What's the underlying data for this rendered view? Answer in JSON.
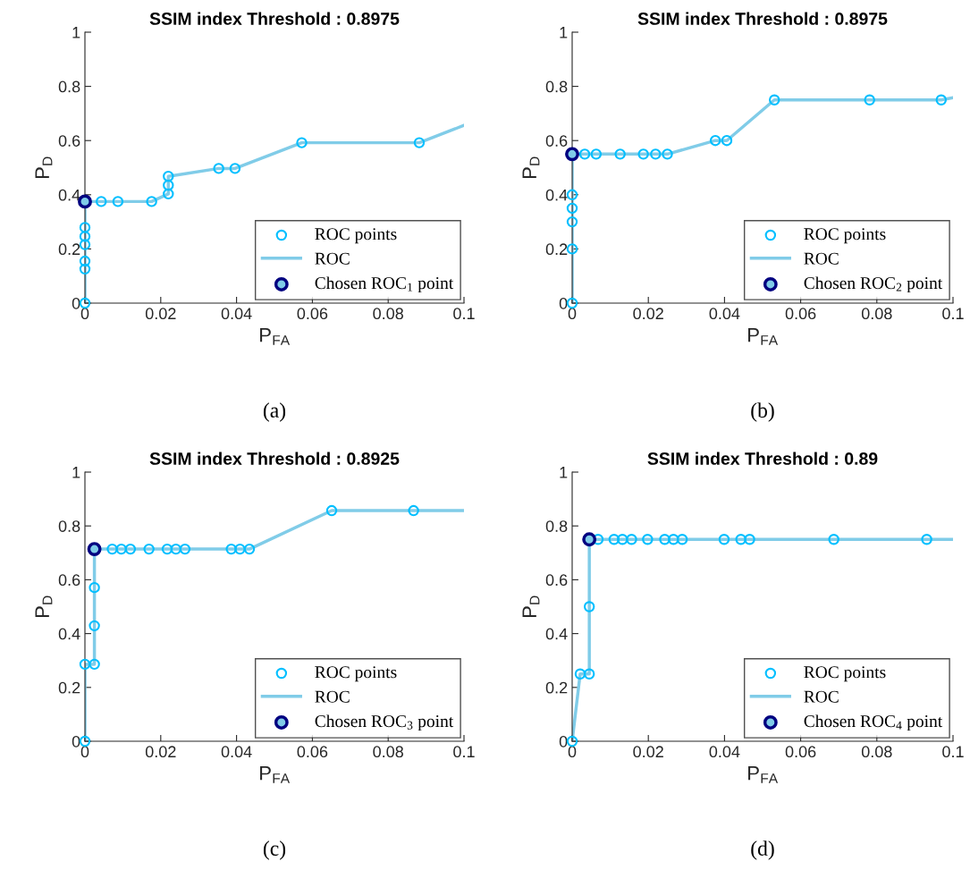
{
  "chart_data": [
    {
      "type": "scatter",
      "title": "SSIM index Threshold : 0.8975",
      "xlabel": "P$_{FA}$",
      "ylabel": "P$_{D}$",
      "annotations": [
        "(a)"
      ],
      "legend": "bottom right",
      "xlim": [
        0,
        0.1
      ],
      "ylim": [
        0,
        1
      ],
      "xticks": [
        0,
        0.02,
        0.04,
        0.06,
        0.08,
        0.1
      ],
      "yticks": [
        0,
        0.2,
        0.4,
        0.6,
        0.8,
        1
      ],
      "series": [
        {
          "name": "ROC points",
          "marker": "circle",
          "color": "#00bfff",
          "x": [
            0,
            0,
            0,
            0,
            0,
            0,
            0.0043,
            0.0087,
            0.0176,
            0.022,
            0.022,
            0.022,
            0.0353,
            0.0396,
            0.0572,
            0.0882
          ],
          "values": [
            0,
            0.126,
            0.155,
            0.216,
            0.246,
            0.279,
            0.375,
            0.375,
            0.375,
            0.403,
            0.435,
            0.468,
            0.497,
            0.497,
            0.592,
            0.592
          ]
        },
        {
          "name": "ROC",
          "type": "line",
          "line_style": "solid",
          "color": "#80cce8",
          "x": [
            0,
            0,
            0.0043,
            0.0087,
            0.0176,
            0.022,
            0.022,
            0.022,
            0.0353,
            0.0396,
            0.0572,
            0.0882,
            0.1
          ],
          "values": [
            0,
            0.375,
            0.375,
            0.375,
            0.375,
            0.403,
            0.435,
            0.468,
            0.497,
            0.497,
            0.592,
            0.592,
            0.656
          ]
        },
        {
          "name": "Chosen ROC$_{1}$ point",
          "marker": "circle",
          "color": "#000080",
          "x": [
            0
          ],
          "values": [
            0.375
          ]
        }
      ]
    },
    {
      "type": "scatter",
      "title": "SSIM index Threshold : 0.8975",
      "xlabel": "P$_{FA}$",
      "ylabel": "P$_{D}$",
      "annotations": [
        "(b)"
      ],
      "legend": "bottom right",
      "xlim": [
        0,
        0.1
      ],
      "ylim": [
        0,
        1
      ],
      "xticks": [
        0,
        0.02,
        0.04,
        0.06,
        0.08,
        0.1
      ],
      "yticks": [
        0,
        0.2,
        0.4,
        0.6,
        0.8,
        1
      ],
      "series": [
        {
          "name": "ROC points",
          "marker": "circle",
          "color": "#00bfff",
          "x": [
            0,
            0,
            0,
            0,
            0,
            0.0033,
            0.0063,
            0.0126,
            0.0187,
            0.0219,
            0.025,
            0.0376,
            0.0406,
            0.0531,
            0.0781,
            0.0969
          ],
          "values": [
            0,
            0.2,
            0.3,
            0.35,
            0.4,
            0.55,
            0.55,
            0.55,
            0.55,
            0.55,
            0.55,
            0.6,
            0.6,
            0.75,
            0.75,
            0.75
          ]
        },
        {
          "name": "ROC",
          "type": "line",
          "line_style": "solid",
          "color": "#80cce8",
          "x": [
            0,
            0,
            0.0033,
            0.0063,
            0.0126,
            0.0187,
            0.0219,
            0.025,
            0.0376,
            0.0406,
            0.0531,
            0.0781,
            0.0969,
            0.1
          ],
          "values": [
            0,
            0.55,
            0.55,
            0.55,
            0.55,
            0.55,
            0.55,
            0.55,
            0.6,
            0.6,
            0.75,
            0.75,
            0.75,
            0.758
          ]
        },
        {
          "name": "Chosen ROC$_{2}$ point",
          "marker": "circle",
          "color": "#000080",
          "x": [
            0
          ],
          "values": [
            0.55
          ]
        }
      ]
    },
    {
      "type": "scatter",
      "title": "SSIM index Threshold : 0.8925",
      "xlabel": "P$_{FA}$",
      "ylabel": "P$_{D}$",
      "annotations": [
        "(c)"
      ],
      "legend": "bottom right",
      "xlim": [
        0,
        0.1
      ],
      "ylim": [
        0,
        1
      ],
      "xticks": [
        0,
        0.02,
        0.04,
        0.06,
        0.08,
        0.1
      ],
      "yticks": [
        0,
        0.2,
        0.4,
        0.6,
        0.8,
        1
      ],
      "series": [
        {
          "name": "ROC points",
          "marker": "circle",
          "color": "#00bfff",
          "x": [
            0,
            0,
            0.0025,
            0.0025,
            0.0025,
            0.0072,
            0.0096,
            0.012,
            0.0169,
            0.0217,
            0.024,
            0.0264,
            0.0386,
            0.0409,
            0.0434,
            0.0651,
            0.0867
          ],
          "values": [
            0,
            0.286,
            0.286,
            0.429,
            0.571,
            0.714,
            0.714,
            0.714,
            0.714,
            0.714,
            0.714,
            0.714,
            0.714,
            0.714,
            0.714,
            0.857,
            0.857
          ]
        },
        {
          "name": "ROC",
          "type": "line",
          "line_style": "solid",
          "color": "#80cce8",
          "x": [
            0,
            0,
            0.0025,
            0.0025,
            0.0025,
            0.0025,
            0.0072,
            0.0096,
            0.012,
            0.0169,
            0.0217,
            0.024,
            0.0264,
            0.0386,
            0.0409,
            0.0434,
            0.0651,
            0.0867,
            0.1
          ],
          "values": [
            0,
            0.286,
            0.286,
            0.429,
            0.571,
            0.714,
            0.714,
            0.714,
            0.714,
            0.714,
            0.714,
            0.714,
            0.714,
            0.714,
            0.714,
            0.714,
            0.857,
            0.857,
            0.857
          ]
        },
        {
          "name": "Chosen ROC$_{3}$ point",
          "marker": "circle",
          "color": "#000080",
          "x": [
            0.0025
          ],
          "values": [
            0.714
          ]
        }
      ]
    },
    {
      "type": "scatter",
      "title": "SSIM index Threshold : 0.89",
      "xlabel": "P$_{FA}$",
      "ylabel": "P$_{D}$",
      "annotations": [
        "(d)"
      ],
      "legend": "bottom right",
      "xlim": [
        0,
        0.1
      ],
      "ylim": [
        0,
        1
      ],
      "xticks": [
        0,
        0.02,
        0.04,
        0.06,
        0.08,
        0.1
      ],
      "yticks": [
        0,
        0.2,
        0.4,
        0.6,
        0.8,
        1
      ],
      "series": [
        {
          "name": "ROC points",
          "marker": "circle",
          "color": "#00bfff",
          "x": [
            0,
            0.0021,
            0.0045,
            0.0045,
            0.0068,
            0.011,
            0.0132,
            0.0156,
            0.0198,
            0.0243,
            0.0266,
            0.0289,
            0.0399,
            0.0443,
            0.0466,
            0.0687,
            0.0931
          ],
          "values": [
            0,
            0.25,
            0.25,
            0.5,
            0.75,
            0.75,
            0.75,
            0.75,
            0.75,
            0.75,
            0.75,
            0.75,
            0.75,
            0.75,
            0.75,
            0.75,
            0.75
          ]
        },
        {
          "name": "ROC",
          "type": "line",
          "line_style": "solid",
          "color": "#80cce8",
          "x": [
            0,
            0.0021,
            0.0045,
            0.0045,
            0.0045,
            0.0068,
            0.011,
            0.0132,
            0.0156,
            0.0198,
            0.0243,
            0.0266,
            0.0289,
            0.0399,
            0.0443,
            0.0466,
            0.0687,
            0.0931,
            0.1
          ],
          "values": [
            0,
            0.25,
            0.25,
            0.5,
            0.75,
            0.75,
            0.75,
            0.75,
            0.75,
            0.75,
            0.75,
            0.75,
            0.75,
            0.75,
            0.75,
            0.75,
            0.75,
            0.75,
            0.75
          ]
        },
        {
          "name": "Chosen ROC$_{4}$ point",
          "marker": "circle",
          "color": "#000080",
          "x": [
            0.0045
          ],
          "values": [
            0.75
          ]
        }
      ]
    }
  ]
}
